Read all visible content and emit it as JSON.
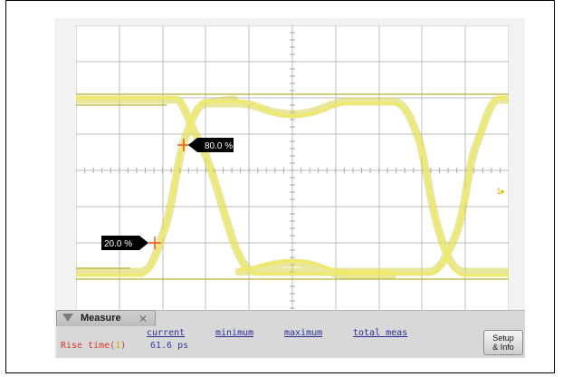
{
  "scope": {
    "markers": {
      "high_label": "80.0 %",
      "low_label": "20.0 %"
    },
    "channel_marker_glyph": "1▸"
  },
  "measure": {
    "tab_label": "Measure",
    "columns": {
      "current": "current",
      "minimum": "minimum",
      "maximum": "maximum",
      "total": "total meas"
    },
    "row": {
      "name": "Rise time(",
      "channel": "1",
      "close": ")",
      "current": "61.6 ps"
    },
    "setup_line1": "Setup",
    "setup_line2": "& Info"
  },
  "colors": {
    "trace": "#e8e65a",
    "grid": "#bdbdbd",
    "screen_bg": "#ffffff",
    "accent_marker": "#e8541e"
  },
  "icons": {
    "tab_arrow": "down-triangle-icon",
    "tab_close": "close-icon"
  }
}
